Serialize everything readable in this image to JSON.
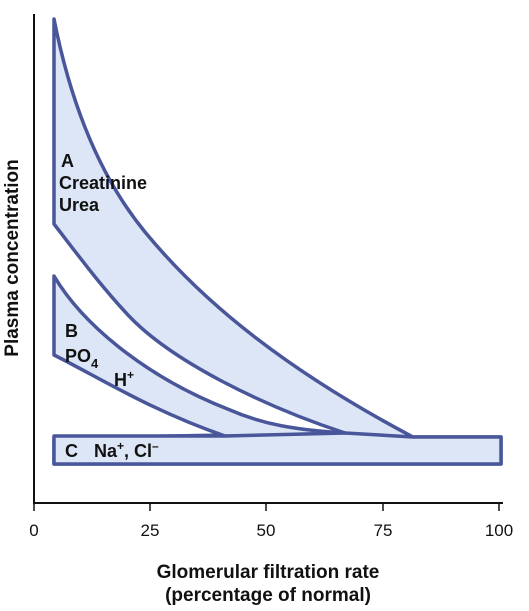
{
  "x_axis": {
    "title_line1": "Glomerular filtration rate",
    "title_line2": "(percentage of normal)",
    "ticks": [
      "0",
      "25",
      "50",
      "75",
      "100"
    ]
  },
  "y_axis": {
    "title": "Plasma concentration"
  },
  "bands": {
    "a": {
      "letter": "A",
      "solute1": "Creatinine",
      "solute2": "Urea"
    },
    "b": {
      "letter": "B",
      "solute1_base": "PO",
      "solute1_sub": "4",
      "solute2_base": "H",
      "solute2_sup": "+"
    },
    "c": {
      "letter": "C",
      "na_base": "Na",
      "na_sup": "+",
      "separator": ", ",
      "cl_base": "Cl",
      "cl_sup": "–"
    }
  },
  "colors": {
    "band_fill": "#dde6f6",
    "band_stroke": "#4a569a",
    "axis": "#111111"
  }
}
